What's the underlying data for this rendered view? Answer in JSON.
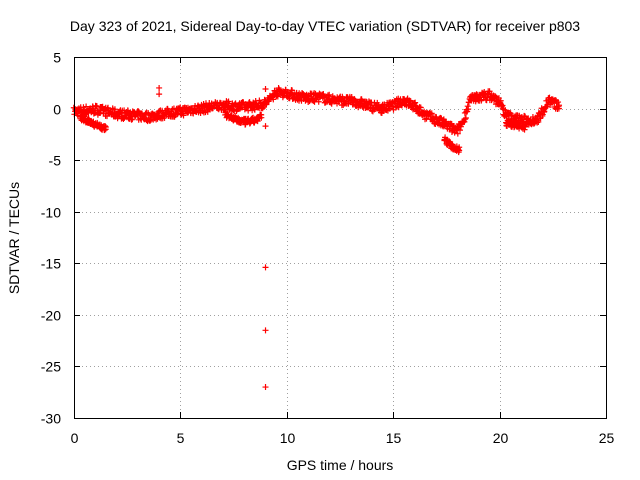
{
  "chart_data": {
    "type": "scatter",
    "title": "Day 323 of 2021, Sidereal Day-to-day VTEC variation (SDTVAR) for receiver p803",
    "xlabel": "GPS time / hours",
    "ylabel": "SDTVAR / TECUs",
    "xlim": [
      0,
      25
    ],
    "ylim": [
      -30,
      5
    ],
    "xticks": [
      "0",
      "5",
      "10",
      "15",
      "20",
      "25"
    ],
    "yticks": [
      "5",
      "0",
      "-5",
      "-10",
      "-15",
      "-20",
      "-25",
      "-30"
    ],
    "grid": true,
    "marker": "+",
    "series_color": "#ff0000",
    "trend_points": [
      [
        0.0,
        -0.3
      ],
      [
        0.5,
        -0.2
      ],
      [
        1.0,
        -0.1
      ],
      [
        1.5,
        -0.3
      ],
      [
        2.0,
        -0.5
      ],
      [
        2.5,
        -0.6
      ],
      [
        3.0,
        -0.7
      ],
      [
        3.5,
        -0.8
      ],
      [
        4.0,
        -0.6
      ],
      [
        4.5,
        -0.4
      ],
      [
        5.0,
        -0.3
      ],
      [
        5.5,
        -0.1
      ],
      [
        6.0,
        0.0
      ],
      [
        6.5,
        0.2
      ],
      [
        7.0,
        0.3
      ],
      [
        7.5,
        0.2
      ],
      [
        8.0,
        0.2
      ],
      [
        8.5,
        0.3
      ],
      [
        9.0,
        0.5
      ],
      [
        9.5,
        1.6
      ],
      [
        10.0,
        1.5
      ],
      [
        10.5,
        1.2
      ],
      [
        11.0,
        1.0
      ],
      [
        11.5,
        1.1
      ],
      [
        12.0,
        0.9
      ],
      [
        12.5,
        0.8
      ],
      [
        13.0,
        0.7
      ],
      [
        13.5,
        0.5
      ],
      [
        14.0,
        0.2
      ],
      [
        14.5,
        0.0
      ],
      [
        15.0,
        0.3
      ],
      [
        15.5,
        0.8
      ],
      [
        16.0,
        0.2
      ],
      [
        16.5,
        -0.6
      ],
      [
        17.0,
        -1.1
      ],
      [
        17.5,
        -1.6
      ],
      [
        18.0,
        -2.2
      ],
      [
        18.3,
        -1.2
      ],
      [
        18.6,
        0.8
      ],
      [
        19.0,
        1.1
      ],
      [
        19.5,
        1.3
      ],
      [
        20.0,
        0.6
      ],
      [
        20.3,
        -0.7
      ],
      [
        20.8,
        -1.0
      ],
      [
        21.3,
        -1.2
      ],
      [
        21.8,
        -1.0
      ],
      [
        22.3,
        0.8
      ],
      [
        22.8,
        0.2
      ]
    ],
    "lower_branches": [
      {
        "x": [
          0.3,
          0.8,
          1.3,
          1.5
        ],
        "y": [
          -0.9,
          -1.3,
          -1.8,
          -2.0
        ]
      },
      {
        "x": [
          7.1,
          7.5,
          8.0,
          8.4,
          8.8
        ],
        "y": [
          -0.5,
          -1.0,
          -1.3,
          -1.2,
          -0.8
        ]
      },
      {
        "x": [
          17.4,
          17.8,
          18.1
        ],
        "y": [
          -3.0,
          -3.7,
          -4.0
        ]
      },
      {
        "x": [
          20.3,
          20.8,
          21.2
        ],
        "y": [
          -1.4,
          -1.6,
          -1.8
        ]
      }
    ],
    "outliers": [
      {
        "x": 4.0,
        "y": 2.0
      },
      {
        "x": 4.0,
        "y": 1.4
      },
      {
        "x": 9.0,
        "y": 1.9
      },
      {
        "x": 9.0,
        "y": -1.7
      },
      {
        "x": 9.0,
        "y": -15.4
      },
      {
        "x": 9.0,
        "y": -21.5
      },
      {
        "x": 9.0,
        "y": -27.0
      }
    ]
  }
}
